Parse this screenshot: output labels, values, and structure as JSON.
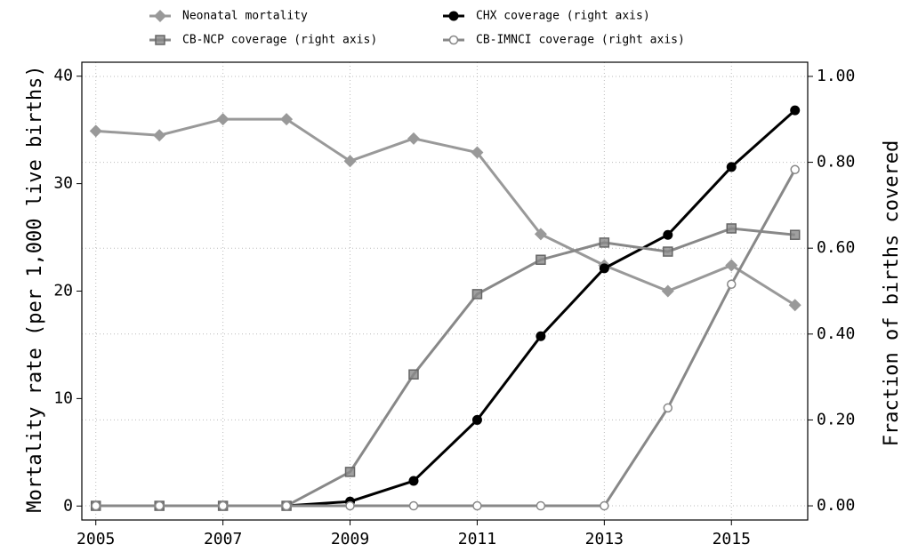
{
  "chart_data": {
    "type": "line",
    "x": [
      2005,
      2006,
      2007,
      2008,
      2009,
      2010,
      2011,
      2012,
      2013,
      2014,
      2015,
      2016
    ],
    "xlim": [
      2004.78,
      2016.2
    ],
    "xticks": [
      2005,
      2007,
      2009,
      2011,
      2013,
      2015
    ],
    "ylabel": "Mortality rate (per 1,000 live births)",
    "ylim": [
      -1.3,
      41.3
    ],
    "yticks": [
      0,
      10,
      20,
      30,
      40
    ],
    "y2label": "Fraction of births covered",
    "y2lim": [
      -0.033,
      1.033
    ],
    "y2ticks": [
      {
        "value": 0,
        "label": "0.00"
      },
      {
        "value": 0.2,
        "label": "0.20"
      },
      {
        "value": 0.4,
        "label": "0.40"
      },
      {
        "value": 0.6,
        "label": "0.60"
      },
      {
        "value": 0.8,
        "label": "0.80"
      },
      {
        "value": 1,
        "label": "1.00"
      }
    ],
    "grid": true,
    "series": [
      {
        "name": "Neonatal mortality",
        "color": "#999999",
        "marker": "diamond",
        "values": [
          34.9,
          34.5,
          36.0,
          36.0,
          32.1,
          34.2,
          32.9,
          25.3,
          22.4,
          20.0,
          22.4,
          18.7
        ]
      },
      {
        "name": "CHX coverage (right axis)",
        "color": "#000000",
        "marker": "circle",
        "axis": "y2",
        "values": [
          0,
          0,
          0,
          0,
          0.01,
          0.058,
          0.2,
          0.395,
          0.553,
          0.631,
          0.789,
          0.921
        ]
      },
      {
        "name": "CB-NCP coverage (right axis)",
        "color": "#888888",
        "marker": "square",
        "axis": "y2",
        "values": [
          0,
          0,
          0,
          0,
          0.079,
          0.306,
          0.493,
          0.573,
          0.613,
          0.592,
          0.646,
          0.631
        ]
      },
      {
        "name": "CB-IMNCI coverage (right axis)",
        "color": "#888888",
        "marker": "open-circle",
        "axis": "y2",
        "values": [
          0,
          0,
          0,
          0,
          0,
          0,
          0,
          0,
          0,
          0.228,
          0.516,
          0.783
        ]
      }
    ]
  }
}
